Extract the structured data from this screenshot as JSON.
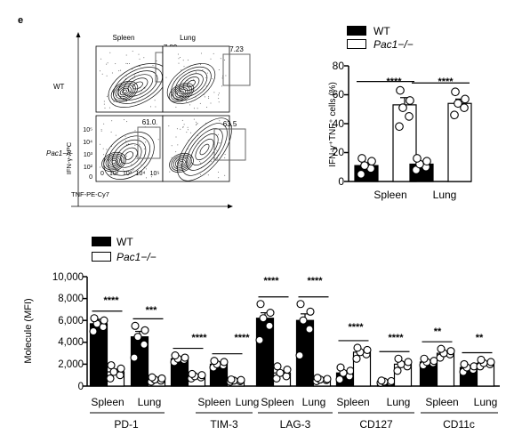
{
  "panel_label": "e",
  "flow": {
    "columns": [
      "Spleen",
      "Lung"
    ],
    "rows": [
      "WT",
      "Pac1−/−"
    ],
    "gate_values": [
      [
        "7.89",
        "7.23"
      ],
      [
        "61.0",
        "63.5"
      ]
    ],
    "y_axis_label": "IFN-γ-APC",
    "x_axis_label": "TNF-PE-Cy7",
    "y_ticks": [
      "10⁵",
      "10⁴",
      "10³",
      "10²",
      "0"
    ],
    "x_ticks": [
      "0",
      "10²",
      "10³",
      "10⁴",
      "10⁵"
    ]
  },
  "colors": {
    "wt": "#000000",
    "ko": "#ffffff"
  },
  "chart_data": [
    {
      "type": "bar",
      "legend": [
        "WT",
        "Pac1−/−"
      ],
      "ylabel": "IFN-γ⁺TNF⁺ cells (%)",
      "ylim": [
        0,
        80
      ],
      "yticks": [
        "0",
        "20",
        "40",
        "60",
        "80"
      ],
      "categories": [
        "Spleen",
        "Lung"
      ],
      "series": [
        {
          "name": "WT",
          "values": [
            11,
            12
          ],
          "errors": [
            2,
            2
          ],
          "points": [
            [
              5,
              9,
              11,
              14,
              16
            ],
            [
              8,
              10,
              12,
              14,
              16
            ]
          ]
        },
        {
          "name": "Pac1−/−",
          "values": [
            53,
            54
          ],
          "errors": [
            5,
            3
          ],
          "points": [
            [
              38,
              45,
              51,
              56,
              63
            ],
            [
              46,
              51,
              54,
              57,
              62
            ]
          ]
        }
      ],
      "significance": [
        "****",
        "****"
      ]
    },
    {
      "type": "bar",
      "legend": [
        "WT",
        "Pac1−/−"
      ],
      "ylabel": "Molecule (MFI)",
      "ylim": [
        0,
        10000
      ],
      "yticks": [
        "0",
        "2,000",
        "4,000",
        "6,000",
        "8,000",
        "10,000"
      ],
      "categories": [
        "Spleen",
        "Lung",
        "Spleen",
        "Lung",
        "Spleen",
        "Lung",
        "Spleen",
        "Lung",
        "Spleen",
        "Lung"
      ],
      "groups": [
        "PD-1",
        "TIM-3",
        "LAG-3",
        "CD127",
        "CD11c"
      ],
      "series": [
        {
          "name": "WT",
          "values": [
            5700,
            4500,
            2500,
            2000,
            6200,
            6000,
            1200,
            400,
            2200,
            1700
          ],
          "errors": [
            400,
            500,
            150,
            200,
            500,
            600,
            200,
            50,
            150,
            150
          ],
          "points": [
            [
              5000,
              5400,
              5700,
              6000,
              6200
            ],
            [
              2600,
              3800,
              4500,
              5100,
              5500
            ],
            [
              2200,
              2400,
              2500,
              2600,
              2800
            ],
            [
              1700,
              1900,
              2000,
              2200,
              2300
            ],
            [
              4200,
              5500,
              6200,
              6700,
              7500
            ],
            [
              2800,
              5200,
              6000,
              6800,
              7500
            ],
            [
              600,
              900,
              1200,
              1400,
              1700
            ],
            [
              300,
              350,
              400,
              450,
              500
            ],
            [
              1900,
              2100,
              2200,
              2300,
              2500
            ],
            [
              1300,
              1500,
              1700,
              1800,
              2000
            ]
          ]
        },
        {
          "name": "Pac1−/−",
          "values": [
            1300,
            600,
            900,
            500,
            1200,
            600,
            3100,
            2000,
            3000,
            2100
          ],
          "errors": [
            250,
            100,
            100,
            50,
            200,
            50,
            200,
            200,
            150,
            100
          ],
          "points": [
            [
              700,
              1000,
              1300,
              1600,
              1900
            ],
            [
              400,
              500,
              600,
              700,
              800
            ],
            [
              700,
              800,
              900,
              1000,
              1100
            ],
            [
              400,
              450,
              500,
              550,
              600
            ],
            [
              700,
              900,
              1200,
              1500,
              1800
            ],
            [
              450,
              550,
              600,
              650,
              750
            ],
            [
              2500,
              2900,
              3100,
              3300,
              3500
            ],
            [
              1400,
              1800,
              2000,
              2200,
              2500
            ],
            [
              2600,
              2900,
              3000,
              3200,
              3400
            ],
            [
              1800,
              2000,
              2100,
              2200,
              2400
            ]
          ]
        }
      ],
      "significance": [
        "****",
        "***",
        "****",
        "****",
        "****",
        "****",
        "****",
        "****",
        "**",
        "**"
      ]
    }
  ]
}
